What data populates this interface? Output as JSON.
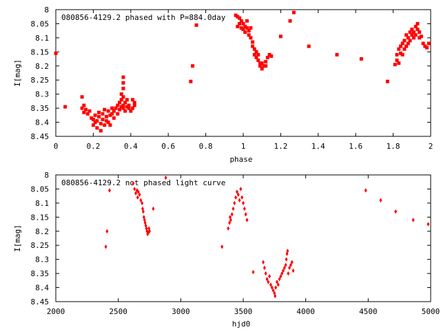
{
  "chart_data": [
    {
      "type": "scatter",
      "title": "080856-4129.2 phased with P=884.0day",
      "xlabel": "phase",
      "ylabel": "I[mag]",
      "xlim": [
        0,
        2
      ],
      "ylim": [
        8.45,
        8.0
      ],
      "y_inverted": true,
      "xticks": [
        "0",
        "0.2",
        "0.4",
        "0.6",
        "0.8",
        "1",
        "1.2",
        "1.4",
        "1.6",
        "1.8",
        "2"
      ],
      "yticks": [
        "8",
        "8.05",
        "8.1",
        "8.15",
        "8.2",
        "8.25",
        "8.3",
        "8.35",
        "8.4",
        "8.45"
      ],
      "color": "#ff0000",
      "marker": "square",
      "points": [
        [
          0.0,
          8.155
        ],
        [
          0.05,
          8.345
        ],
        [
          0.14,
          8.35
        ],
        [
          0.14,
          8.31
        ],
        [
          0.15,
          8.34
        ],
        [
          0.15,
          8.365
        ],
        [
          0.16,
          8.355
        ],
        [
          0.17,
          8.37
        ],
        [
          0.18,
          8.36
        ],
        [
          0.19,
          8.385
        ],
        [
          0.2,
          8.39
        ],
        [
          0.2,
          8.41
        ],
        [
          0.21,
          8.4
        ],
        [
          0.21,
          8.375
        ],
        [
          0.22,
          8.42
        ],
        [
          0.22,
          8.395
        ],
        [
          0.23,
          8.38
        ],
        [
          0.23,
          8.365
        ],
        [
          0.24,
          8.43
        ],
        [
          0.24,
          8.405
        ],
        [
          0.25,
          8.39
        ],
        [
          0.25,
          8.37
        ],
        [
          0.26,
          8.41
        ],
        [
          0.26,
          8.355
        ],
        [
          0.27,
          8.395
        ],
        [
          0.27,
          8.38
        ],
        [
          0.28,
          8.4
        ],
        [
          0.28,
          8.36
        ],
        [
          0.29,
          8.375
        ],
        [
          0.29,
          8.41
        ],
        [
          0.3,
          8.37
        ],
        [
          0.3,
          8.35
        ],
        [
          0.31,
          8.385
        ],
        [
          0.31,
          8.36
        ],
        [
          0.32,
          8.35
        ],
        [
          0.33,
          8.34
        ],
        [
          0.33,
          8.37
        ],
        [
          0.34,
          8.33
        ],
        [
          0.34,
          8.355
        ],
        [
          0.35,
          8.32
        ],
        [
          0.35,
          8.345
        ],
        [
          0.35,
          8.3
        ],
        [
          0.36,
          8.34
        ],
        [
          0.36,
          8.31
        ],
        [
          0.36,
          8.28
        ],
        [
          0.36,
          8.26
        ],
        [
          0.36,
          8.24
        ],
        [
          0.36,
          8.35
        ],
        [
          0.37,
          8.33
        ],
        [
          0.37,
          8.36
        ],
        [
          0.38,
          8.345
        ],
        [
          0.38,
          8.32
        ],
        [
          0.39,
          8.35
        ],
        [
          0.39,
          8.34
        ],
        [
          0.4,
          8.36
        ],
        [
          0.41,
          8.32
        ],
        [
          0.41,
          8.35
        ],
        [
          0.42,
          8.34
        ],
        [
          0.42,
          8.33
        ],
        [
          0.72,
          8.255
        ],
        [
          0.73,
          8.2
        ],
        [
          0.75,
          8.055
        ],
        [
          0.96,
          8.02
        ],
        [
          0.97,
          8.025
        ],
        [
          0.97,
          8.06
        ],
        [
          0.98,
          8.05
        ],
        [
          0.98,
          8.03
        ],
        [
          0.99,
          8.065
        ],
        [
          0.99,
          8.04
        ],
        [
          1.0,
          8.07
        ],
        [
          1.0,
          8.05
        ],
        [
          1.01,
          8.06
        ],
        [
          1.01,
          8.08
        ],
        [
          1.02,
          8.065
        ],
        [
          1.02,
          8.04
        ],
        [
          1.03,
          8.09
        ],
        [
          1.03,
          8.075
        ],
        [
          1.04,
          8.1
        ],
        [
          1.04,
          8.065
        ],
        [
          1.05,
          8.13
        ],
        [
          1.05,
          8.115
        ],
        [
          1.06,
          8.14
        ],
        [
          1.06,
          8.16
        ],
        [
          1.07,
          8.15
        ],
        [
          1.07,
          8.17
        ],
        [
          1.08,
          8.18
        ],
        [
          1.08,
          8.16
        ],
        [
          1.09,
          8.19
        ],
        [
          1.09,
          8.2
        ],
        [
          1.1,
          8.21
        ],
        [
          1.1,
          8.19
        ],
        [
          1.11,
          8.2
        ],
        [
          1.12,
          8.2
        ],
        [
          1.12,
          8.185
        ],
        [
          1.13,
          8.17
        ],
        [
          1.14,
          8.16
        ],
        [
          1.15,
          8.165
        ],
        [
          1.2,
          8.095
        ],
        [
          1.25,
          8.04
        ],
        [
          1.27,
          8.01
        ],
        [
          1.35,
          8.13
        ],
        [
          1.5,
          8.16
        ],
        [
          1.63,
          8.175
        ],
        [
          1.77,
          8.255
        ],
        [
          1.81,
          8.195
        ],
        [
          1.82,
          8.18
        ],
        [
          1.82,
          8.16
        ],
        [
          1.83,
          8.14
        ],
        [
          1.83,
          8.19
        ],
        [
          1.84,
          8.13
        ],
        [
          1.84,
          8.155
        ],
        [
          1.85,
          8.12
        ],
        [
          1.85,
          8.16
        ],
        [
          1.86,
          8.14
        ],
        [
          1.86,
          8.11
        ],
        [
          1.87,
          8.13
        ],
        [
          1.87,
          8.09
        ],
        [
          1.88,
          8.1
        ],
        [
          1.88,
          8.12
        ],
        [
          1.89,
          8.08
        ],
        [
          1.89,
          8.11
        ],
        [
          1.9,
          8.09
        ],
        [
          1.9,
          8.07
        ],
        [
          1.91,
          8.08
        ],
        [
          1.91,
          8.1
        ],
        [
          1.92,
          8.06
        ],
        [
          1.92,
          8.09
        ],
        [
          1.93,
          8.07
        ],
        [
          1.93,
          8.05
        ],
        [
          1.94,
          8.08
        ],
        [
          1.94,
          8.1
        ],
        [
          1.95,
          8.095
        ],
        [
          1.96,
          8.12
        ],
        [
          1.97,
          8.13
        ],
        [
          1.98,
          8.135
        ],
        [
          1.99,
          8.12
        ]
      ]
    },
    {
      "type": "scatter",
      "title": "080856-4129.2 not phased light curve",
      "xlabel": "hjd0",
      "ylabel": "I[mag]",
      "xlim": [
        2000,
        5000
      ],
      "ylim": [
        8.45,
        8.0
      ],
      "y_inverted": true,
      "xticks": [
        "2000",
        "2500",
        "3000",
        "3500",
        "4000",
        "4500",
        "5000"
      ],
      "yticks": [
        "8",
        "8.05",
        "8.1",
        "8.15",
        "8.2",
        "8.25",
        "8.3",
        "8.35",
        "8.4",
        "8.45"
      ],
      "color": "#ff0000",
      "marker": "diamond",
      "points": [
        [
          2400,
          8.255
        ],
        [
          2410,
          8.2
        ],
        [
          2430,
          8.055
        ],
        [
          2620,
          8.03
        ],
        [
          2630,
          8.05
        ],
        [
          2640,
          8.065
        ],
        [
          2650,
          8.055
        ],
        [
          2655,
          8.08
        ],
        [
          2660,
          8.06
        ],
        [
          2670,
          8.07
        ],
        [
          2680,
          8.09
        ],
        [
          2690,
          8.1
        ],
        [
          2695,
          8.12
        ],
        [
          2700,
          8.13
        ],
        [
          2705,
          8.15
        ],
        [
          2710,
          8.16
        ],
        [
          2715,
          8.17
        ],
        [
          2720,
          8.18
        ],
        [
          2725,
          8.19
        ],
        [
          2730,
          8.2
        ],
        [
          2735,
          8.21
        ],
        [
          2740,
          8.205
        ],
        [
          2745,
          8.19
        ],
        [
          2750,
          8.2
        ],
        [
          2780,
          8.12
        ],
        [
          2880,
          8.01
        ],
        [
          3330,
          8.255
        ],
        [
          3380,
          8.19
        ],
        [
          3390,
          8.17
        ],
        [
          3395,
          8.15
        ],
        [
          3400,
          8.16
        ],
        [
          3410,
          8.14
        ],
        [
          3420,
          8.12
        ],
        [
          3430,
          8.1
        ],
        [
          3440,
          8.08
        ],
        [
          3450,
          8.06
        ],
        [
          3460,
          8.07
        ],
        [
          3470,
          8.09
        ],
        [
          3480,
          8.05
        ],
        [
          3490,
          8.08
        ],
        [
          3500,
          8.1
        ],
        [
          3510,
          8.12
        ],
        [
          3520,
          8.14
        ],
        [
          3530,
          8.16
        ],
        [
          3580,
          8.345
        ],
        [
          3660,
          8.31
        ],
        [
          3670,
          8.33
        ],
        [
          3680,
          8.35
        ],
        [
          3690,
          8.37
        ],
        [
          3700,
          8.38
        ],
        [
          3710,
          8.36
        ],
        [
          3720,
          8.39
        ],
        [
          3730,
          8.4
        ],
        [
          3740,
          8.41
        ],
        [
          3750,
          8.42
        ],
        [
          3755,
          8.43
        ],
        [
          3760,
          8.4
        ],
        [
          3770,
          8.38
        ],
        [
          3780,
          8.39
        ],
        [
          3790,
          8.37
        ],
        [
          3800,
          8.36
        ],
        [
          3810,
          8.35
        ],
        [
          3820,
          8.34
        ],
        [
          3830,
          8.33
        ],
        [
          3840,
          8.32
        ],
        [
          3845,
          8.3
        ],
        [
          3850,
          8.28
        ],
        [
          3855,
          8.27
        ],
        [
          3860,
          8.35
        ],
        [
          3870,
          8.33
        ],
        [
          3880,
          8.32
        ],
        [
          3890,
          8.31
        ],
        [
          3900,
          8.34
        ],
        [
          4480,
          8.055
        ],
        [
          4600,
          8.09
        ],
        [
          4720,
          8.13
        ],
        [
          4860,
          8.16
        ],
        [
          4980,
          8.175
        ]
      ]
    }
  ]
}
